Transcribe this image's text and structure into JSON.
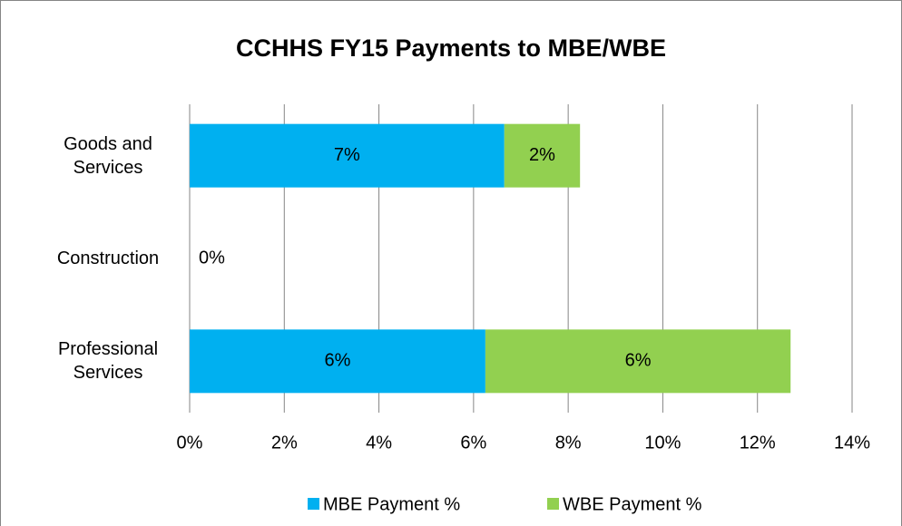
{
  "chart_data": {
    "type": "bar",
    "orientation": "horizontal",
    "stacked": true,
    "title": "CCHHS FY15 Payments to MBE/WBE",
    "categories": [
      "Goods and Services",
      "Construction",
      "Professional Services"
    ],
    "series": [
      {
        "name": "MBE Payment %",
        "color": "#00b0f0",
        "values": [
          6.65,
          0,
          6.25
        ],
        "value_labels": [
          "7%",
          "0%",
          "6%"
        ]
      },
      {
        "name": "WBE Payment %",
        "color": "#92d050",
        "values": [
          1.6,
          0,
          6.45
        ],
        "value_labels": [
          "2%",
          null,
          "6%"
        ]
      }
    ],
    "xlim": [
      0,
      14
    ],
    "xticks": [
      {
        "value": 0,
        "label": "0%"
      },
      {
        "value": 2,
        "label": "2%"
      },
      {
        "value": 4,
        "label": "4%"
      },
      {
        "value": 6,
        "label": "6%"
      },
      {
        "value": 8,
        "label": "8%"
      },
      {
        "value": 10,
        "label": "10%"
      },
      {
        "value": 12,
        "label": "12%"
      },
      {
        "value": 14,
        "label": "14%"
      }
    ],
    "grid": true,
    "legend": "bottom"
  }
}
